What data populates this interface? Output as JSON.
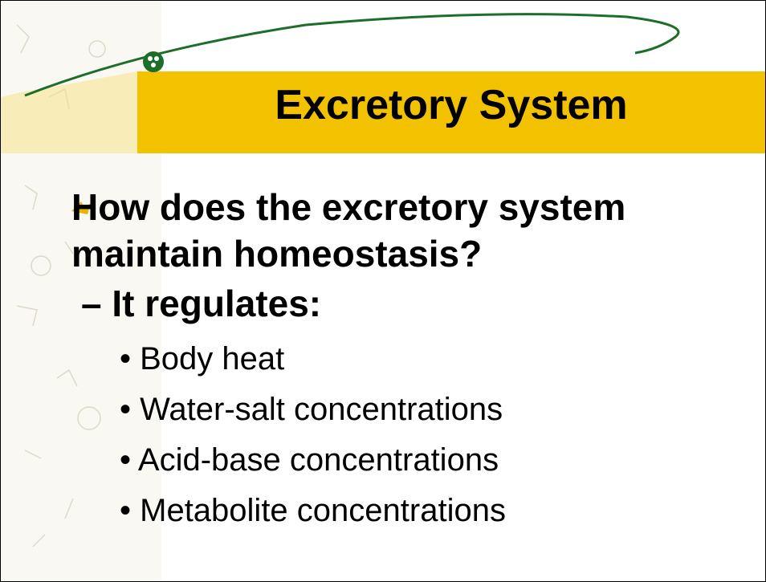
{
  "title": "Excretory System",
  "bullets": [
    {
      "text": "How does the excretory system maintain homeostasis?",
      "children": [
        {
          "text": "It regulates:",
          "children": [
            "Body heat",
            "Water-salt concentrations",
            "Acid-base concentrations",
            "Metabolite concentrations"
          ]
        }
      ]
    }
  ]
}
